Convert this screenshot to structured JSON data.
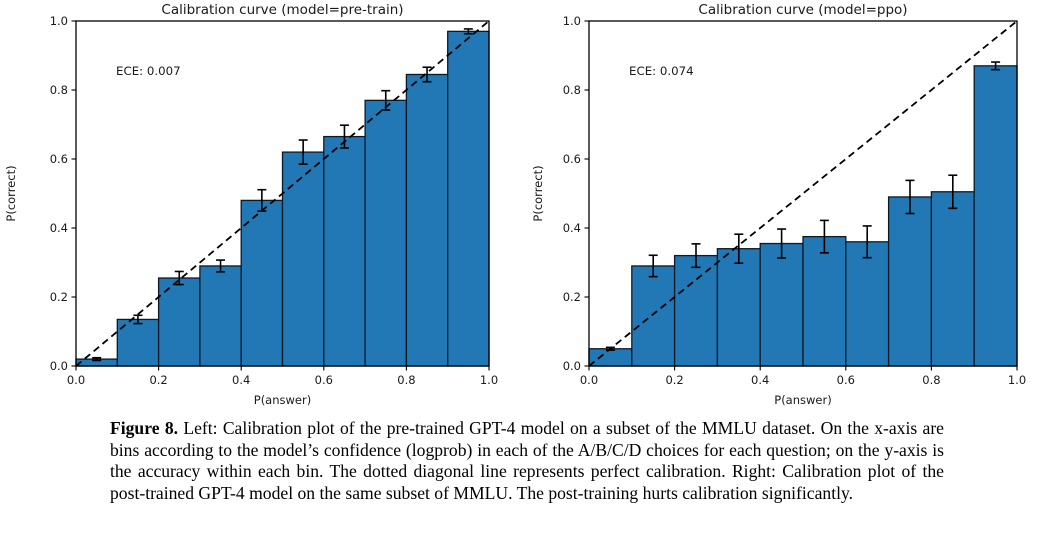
{
  "figure": {
    "caption_label": "Figure 8.",
    "caption_text": "Left: Calibration plot of the pre-trained GPT-4 model on a subset of the MMLU dataset. On the x-axis are bins according to the model’s confidence (logprob) in each of the A/B/C/D choices for each question; on the y-axis is the accuracy within each bin. The dotted diagonal line represents perfect calibration. Right: Calibration plot of the post-trained GPT-4 model on the same subset of MMLU. The post-training hurts calibration significantly."
  },
  "colors": {
    "background": "#ffffff",
    "bar_fill": "#2277b5",
    "bar_edge": "#0c1a26",
    "axis": "#000000",
    "dashed_line": "#000000",
    "error_bar": "#000000",
    "text": "#1a1a1a"
  },
  "chart_data": [
    {
      "type": "bar",
      "title": "Calibration curve (model=pre-train)",
      "annotation": "ECE: 0.007",
      "xlabel": "P(answer)",
      "ylabel": "P(correct)",
      "xlim": [
        0.0,
        1.0
      ],
      "ylim": [
        0.0,
        1.0
      ],
      "xticks": [
        "0.0",
        "0.2",
        "0.4",
        "0.6",
        "0.8",
        "1.0"
      ],
      "yticks": [
        "0.0",
        "0.2",
        "0.4",
        "0.6",
        "0.8",
        "1.0"
      ],
      "bin_edges": [
        0.0,
        0.1,
        0.2,
        0.3,
        0.4,
        0.5,
        0.6,
        0.7,
        0.8,
        0.9,
        1.0
      ],
      "values": [
        0.02,
        0.135,
        0.255,
        0.29,
        0.48,
        0.62,
        0.665,
        0.77,
        0.845,
        0.97
      ],
      "errors": [
        0.004,
        0.012,
        0.019,
        0.017,
        0.031,
        0.035,
        0.033,
        0.028,
        0.021,
        0.007
      ],
      "diagonal": true,
      "grid": false,
      "legend": "none"
    },
    {
      "type": "bar",
      "title": "Calibration curve (model=ppo)",
      "annotation": "ECE: 0.074",
      "xlabel": "P(answer)",
      "ylabel": "P(correct)",
      "xlim": [
        0.0,
        1.0
      ],
      "ylim": [
        0.0,
        1.0
      ],
      "xticks": [
        "0.0",
        "0.2",
        "0.4",
        "0.6",
        "0.8",
        "1.0"
      ],
      "yticks": [
        "0.0",
        "0.2",
        "0.4",
        "0.6",
        "0.8",
        "1.0"
      ],
      "bin_edges": [
        0.0,
        0.1,
        0.2,
        0.3,
        0.4,
        0.5,
        0.6,
        0.7,
        0.8,
        0.9,
        1.0
      ],
      "values": [
        0.05,
        0.29,
        0.32,
        0.34,
        0.355,
        0.375,
        0.36,
        0.49,
        0.505,
        0.87
      ],
      "errors": [
        0.004,
        0.031,
        0.034,
        0.042,
        0.042,
        0.047,
        0.046,
        0.048,
        0.048,
        0.011
      ],
      "diagonal": true,
      "grid": false,
      "legend": "none"
    }
  ]
}
